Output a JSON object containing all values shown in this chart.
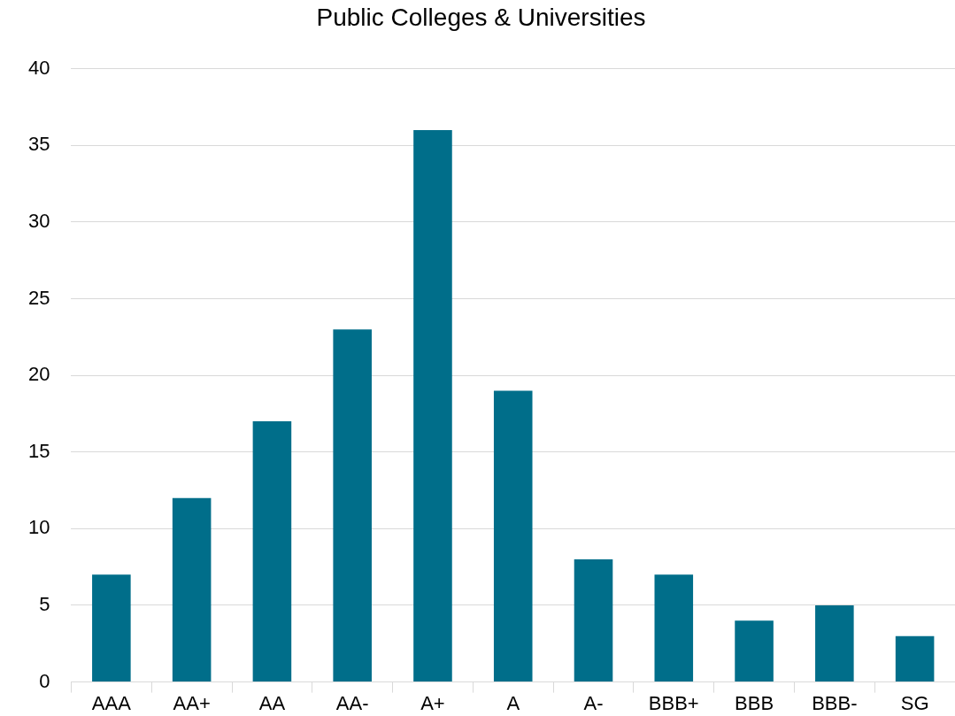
{
  "chart_data": {
    "type": "bar",
    "title": "Public Colleges & Universities",
    "categories": [
      "AAA",
      "AA+",
      "AA",
      "AA-",
      "A+",
      "A",
      "A-",
      "BBB+",
      "BBB",
      "BBB-",
      "SG"
    ],
    "values": [
      7,
      12,
      17,
      23,
      36,
      19,
      8,
      7,
      4,
      5,
      3
    ],
    "color": "#006e8a",
    "ylim": [
      0,
      40
    ],
    "yticks": [
      0,
      5,
      10,
      15,
      20,
      25,
      30,
      35,
      40
    ],
    "grid": "y"
  }
}
